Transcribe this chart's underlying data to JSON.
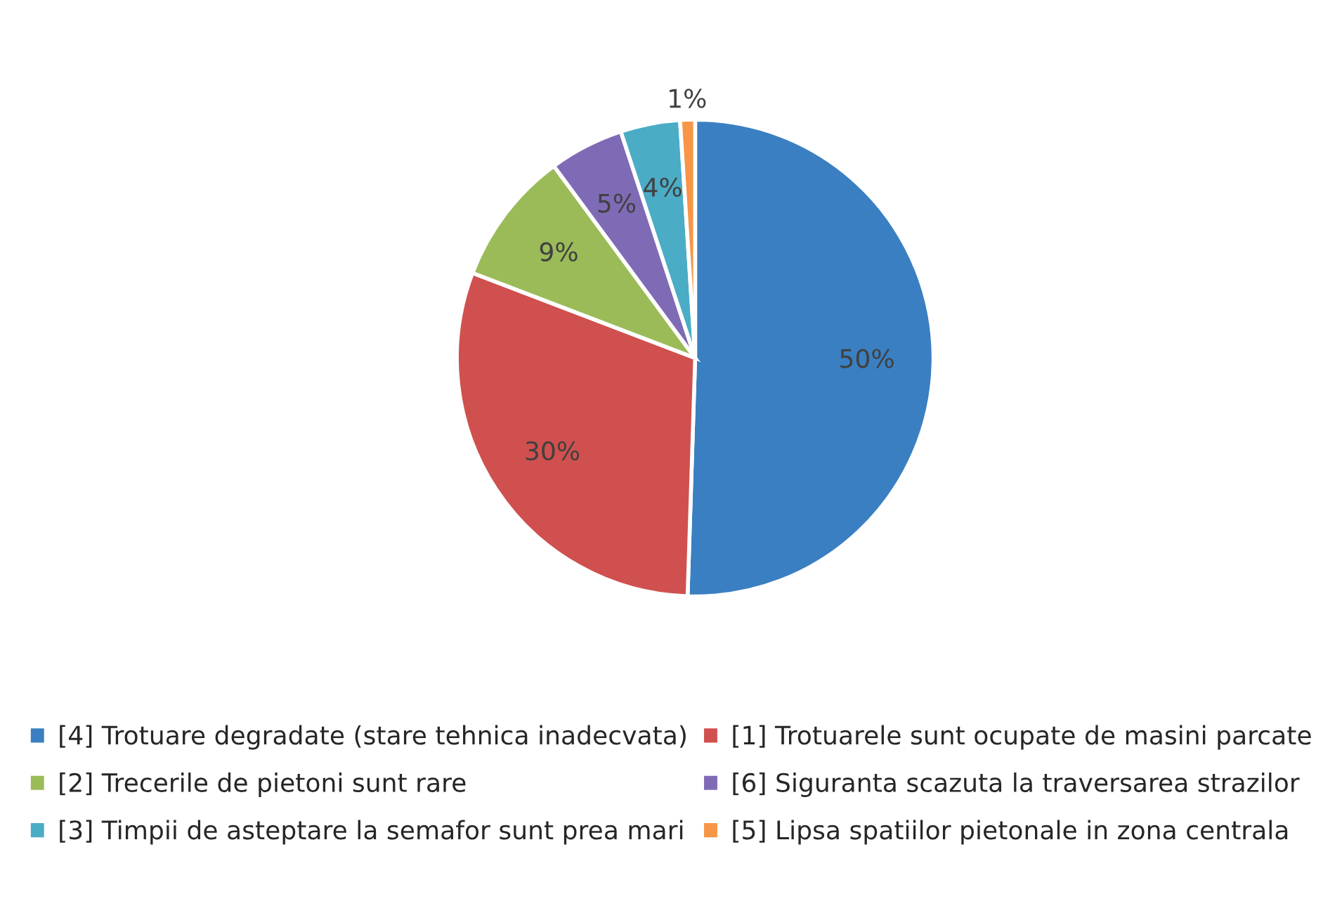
{
  "chart_data": {
    "type": "pie",
    "categories": [
      "[4] Trotuare degradate (stare tehnica inadecvata)",
      "[1] Trotuarele sunt ocupate de masini parcate",
      "[2] Trecerile de pietoni sunt rare",
      "[6] Siguranta scazuta la traversarea strazilor",
      "[3] Timpii de asteptare la semafor sunt prea mari",
      "[5] Lipsa spatiilor pietonale in zona centrala"
    ],
    "values": [
      50,
      30,
      9,
      5,
      4,
      1
    ],
    "colors": [
      "#3a7fc1",
      "#d0504f",
      "#9bbb59",
      "#7f6bb5",
      "#4bacc6",
      "#f79646"
    ],
    "value_labels": [
      "50%",
      "30%",
      "9%",
      "5%",
      "4%",
      "1%"
    ],
    "legend": "bottom"
  }
}
